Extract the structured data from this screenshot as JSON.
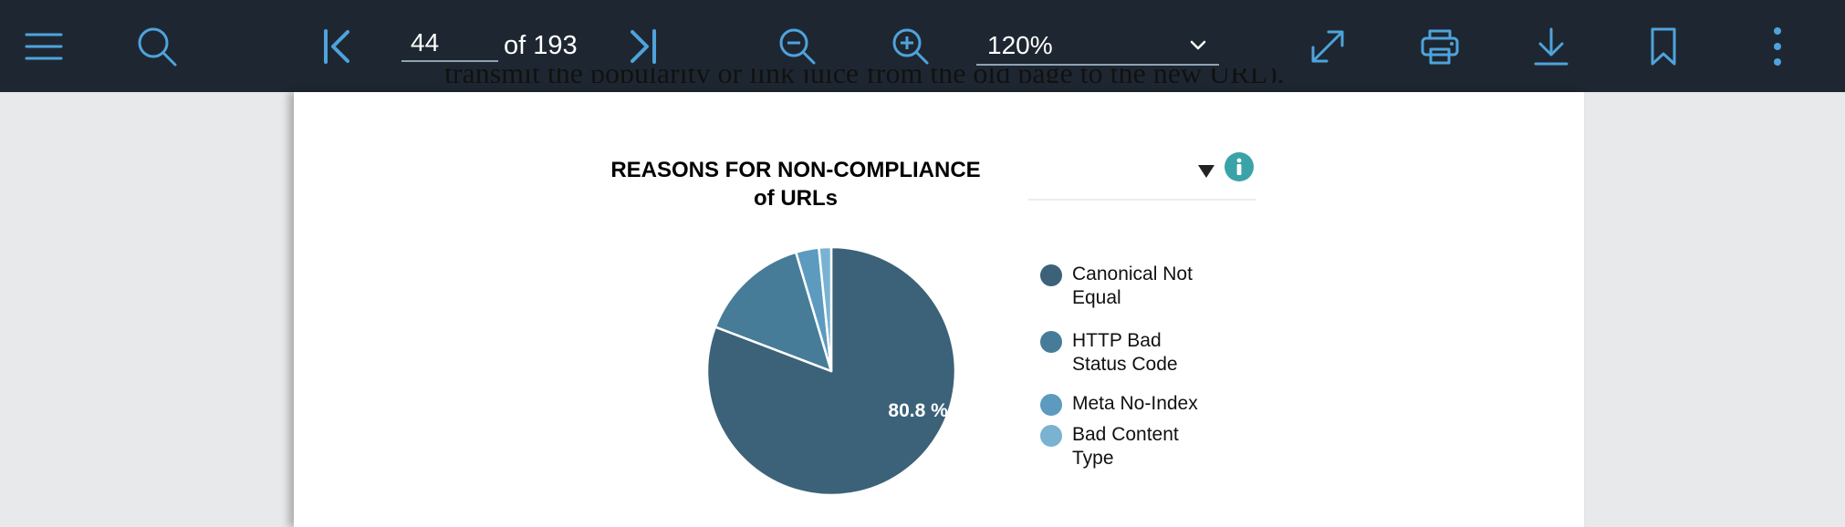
{
  "toolbar": {
    "page_current": "44",
    "page_of": "of 193",
    "zoom": "120%",
    "icons": [
      "menu-icon",
      "search-icon",
      "first-page-icon",
      "last-page-icon",
      "zoom-out-icon",
      "zoom-in-icon",
      "chevron-down-icon",
      "fullscreen-icon",
      "print-icon",
      "download-icon",
      "bookmark-icon",
      "more-vert-icon"
    ]
  },
  "document": {
    "cut_text": "transmit the popularity or link juice from the old page to the new URL)."
  },
  "colors": {
    "toolbar_bg": "#1e2731",
    "icon_blue": "#4fa3dc",
    "info_teal": "#3aa3a8"
  },
  "chart_data": {
    "type": "pie",
    "title": "REASONS FOR NON-COMPLIANCE of URLs",
    "title_line1": "REASONS FOR NON-COMPLIANCE",
    "title_line2": "of URLs",
    "categories": [
      "Canonical Not Equal",
      "HTTP Bad Status Code",
      "Meta No-Index",
      "Bad Content Type"
    ],
    "values": [
      80.8,
      14.6,
      3.0,
      1.6
    ],
    "colors": [
      "#3b6278",
      "#467c98",
      "#5c9bbf",
      "#7ab2d2"
    ],
    "data_labels": [
      "80.8 %"
    ],
    "legend": [
      {
        "label": "Canonical Not Equal",
        "line1": "Canonical Not",
        "line2": "Equal"
      },
      {
        "label": "HTTP Bad Status Code",
        "line1": "HTTP Bad",
        "line2": "Status Code"
      },
      {
        "label": "Meta No-Index",
        "line1": "Meta No-Index",
        "line2": ""
      },
      {
        "label": "Bad Content Type",
        "line1": "Bad Content",
        "line2": "Type"
      }
    ],
    "legend_position": "right"
  }
}
